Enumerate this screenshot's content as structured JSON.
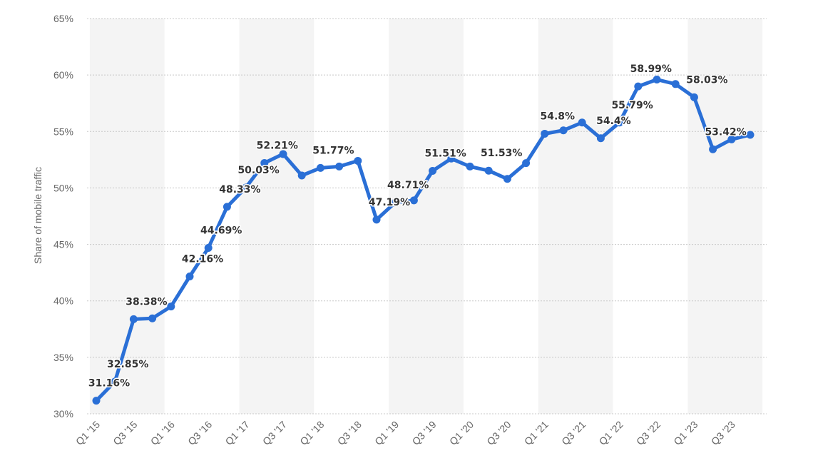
{
  "chart_data": {
    "type": "line",
    "ylabel": "Share of mobile traffic",
    "ylim": [
      30,
      65
    ],
    "yticks": [
      "30%",
      "35%",
      "40%",
      "45%",
      "50%",
      "55%",
      "60%",
      "65%"
    ],
    "ytick_values": [
      30,
      35,
      40,
      45,
      50,
      55,
      60,
      65
    ],
    "grid": true,
    "categories": [
      "Q1 '15",
      "Q2 '15",
      "Q3 '15",
      "Q4 '15",
      "Q1 '16",
      "Q2 '16",
      "Q3 '16",
      "Q4 '16",
      "Q1 '17",
      "Q2 '17",
      "Q3 '17",
      "Q4 '17",
      "Q1 '18",
      "Q2 '18",
      "Q3 '18",
      "Q4 '18",
      "Q1 '19",
      "Q2 '19",
      "Q3 '19",
      "Q4 '19",
      "Q1 '20",
      "Q2 '20",
      "Q3 '20",
      "Q4 '20",
      "Q1 '21",
      "Q2 '21",
      "Q3 '21",
      "Q4 '21",
      "Q1 '22",
      "Q2 '22",
      "Q3 '22",
      "Q4 '22",
      "Q1 '23",
      "Q2 '23",
      "Q3 '23",
      "Q4 '23"
    ],
    "xtick_labels": [
      "Q1 '15",
      "Q3 '15",
      "Q1 '16",
      "Q3 '16",
      "Q1 '17",
      "Q3 '17",
      "Q1 '18",
      "Q3 '18",
      "Q1 '19",
      "Q3 '19",
      "Q1 '20",
      "Q3 '20",
      "Q1 '21",
      "Q3 '21",
      "Q1 '22",
      "Q3 '22",
      "Q1 '23",
      "Q3 '23"
    ],
    "values": [
      31.16,
      32.85,
      38.38,
      38.45,
      39.5,
      42.16,
      44.69,
      48.33,
      50.03,
      52.21,
      53.0,
      51.1,
      51.77,
      51.9,
      52.4,
      47.19,
      48.71,
      48.9,
      51.51,
      52.6,
      51.9,
      51.53,
      50.8,
      52.2,
      54.8,
      55.1,
      55.79,
      54.4,
      55.79,
      58.99,
      59.6,
      59.2,
      58.03,
      53.42,
      54.3,
      54.7
    ],
    "data_labels": [
      {
        "index": 0,
        "text": "31.16%"
      },
      {
        "index": 1,
        "text": "32.85%"
      },
      {
        "index": 2,
        "text": "38.38%"
      },
      {
        "index": 5,
        "text": "42.16%"
      },
      {
        "index": 6,
        "text": "44.69%"
      },
      {
        "index": 7,
        "text": "48.33%"
      },
      {
        "index": 8,
        "text": "50.03%"
      },
      {
        "index": 9,
        "text": "52.21%"
      },
      {
        "index": 12,
        "text": "51.77%"
      },
      {
        "index": 15,
        "text": "47.19%"
      },
      {
        "index": 16,
        "text": "48.71%"
      },
      {
        "index": 18,
        "text": "51.51%"
      },
      {
        "index": 21,
        "text": "51.53%"
      },
      {
        "index": 24,
        "text": "54.8%"
      },
      {
        "index": 27,
        "text": "54.4%"
      },
      {
        "index": 28,
        "text": "55.79%"
      },
      {
        "index": 29,
        "text": "58.99%"
      },
      {
        "index": 32,
        "text": "58.03%"
      },
      {
        "index": 33,
        "text": "53.42%"
      }
    ],
    "colors": {
      "line": "#2a6fd6",
      "grid": "#c8c8c8",
      "band": "#f4f4f4",
      "text": "#666666"
    }
  }
}
